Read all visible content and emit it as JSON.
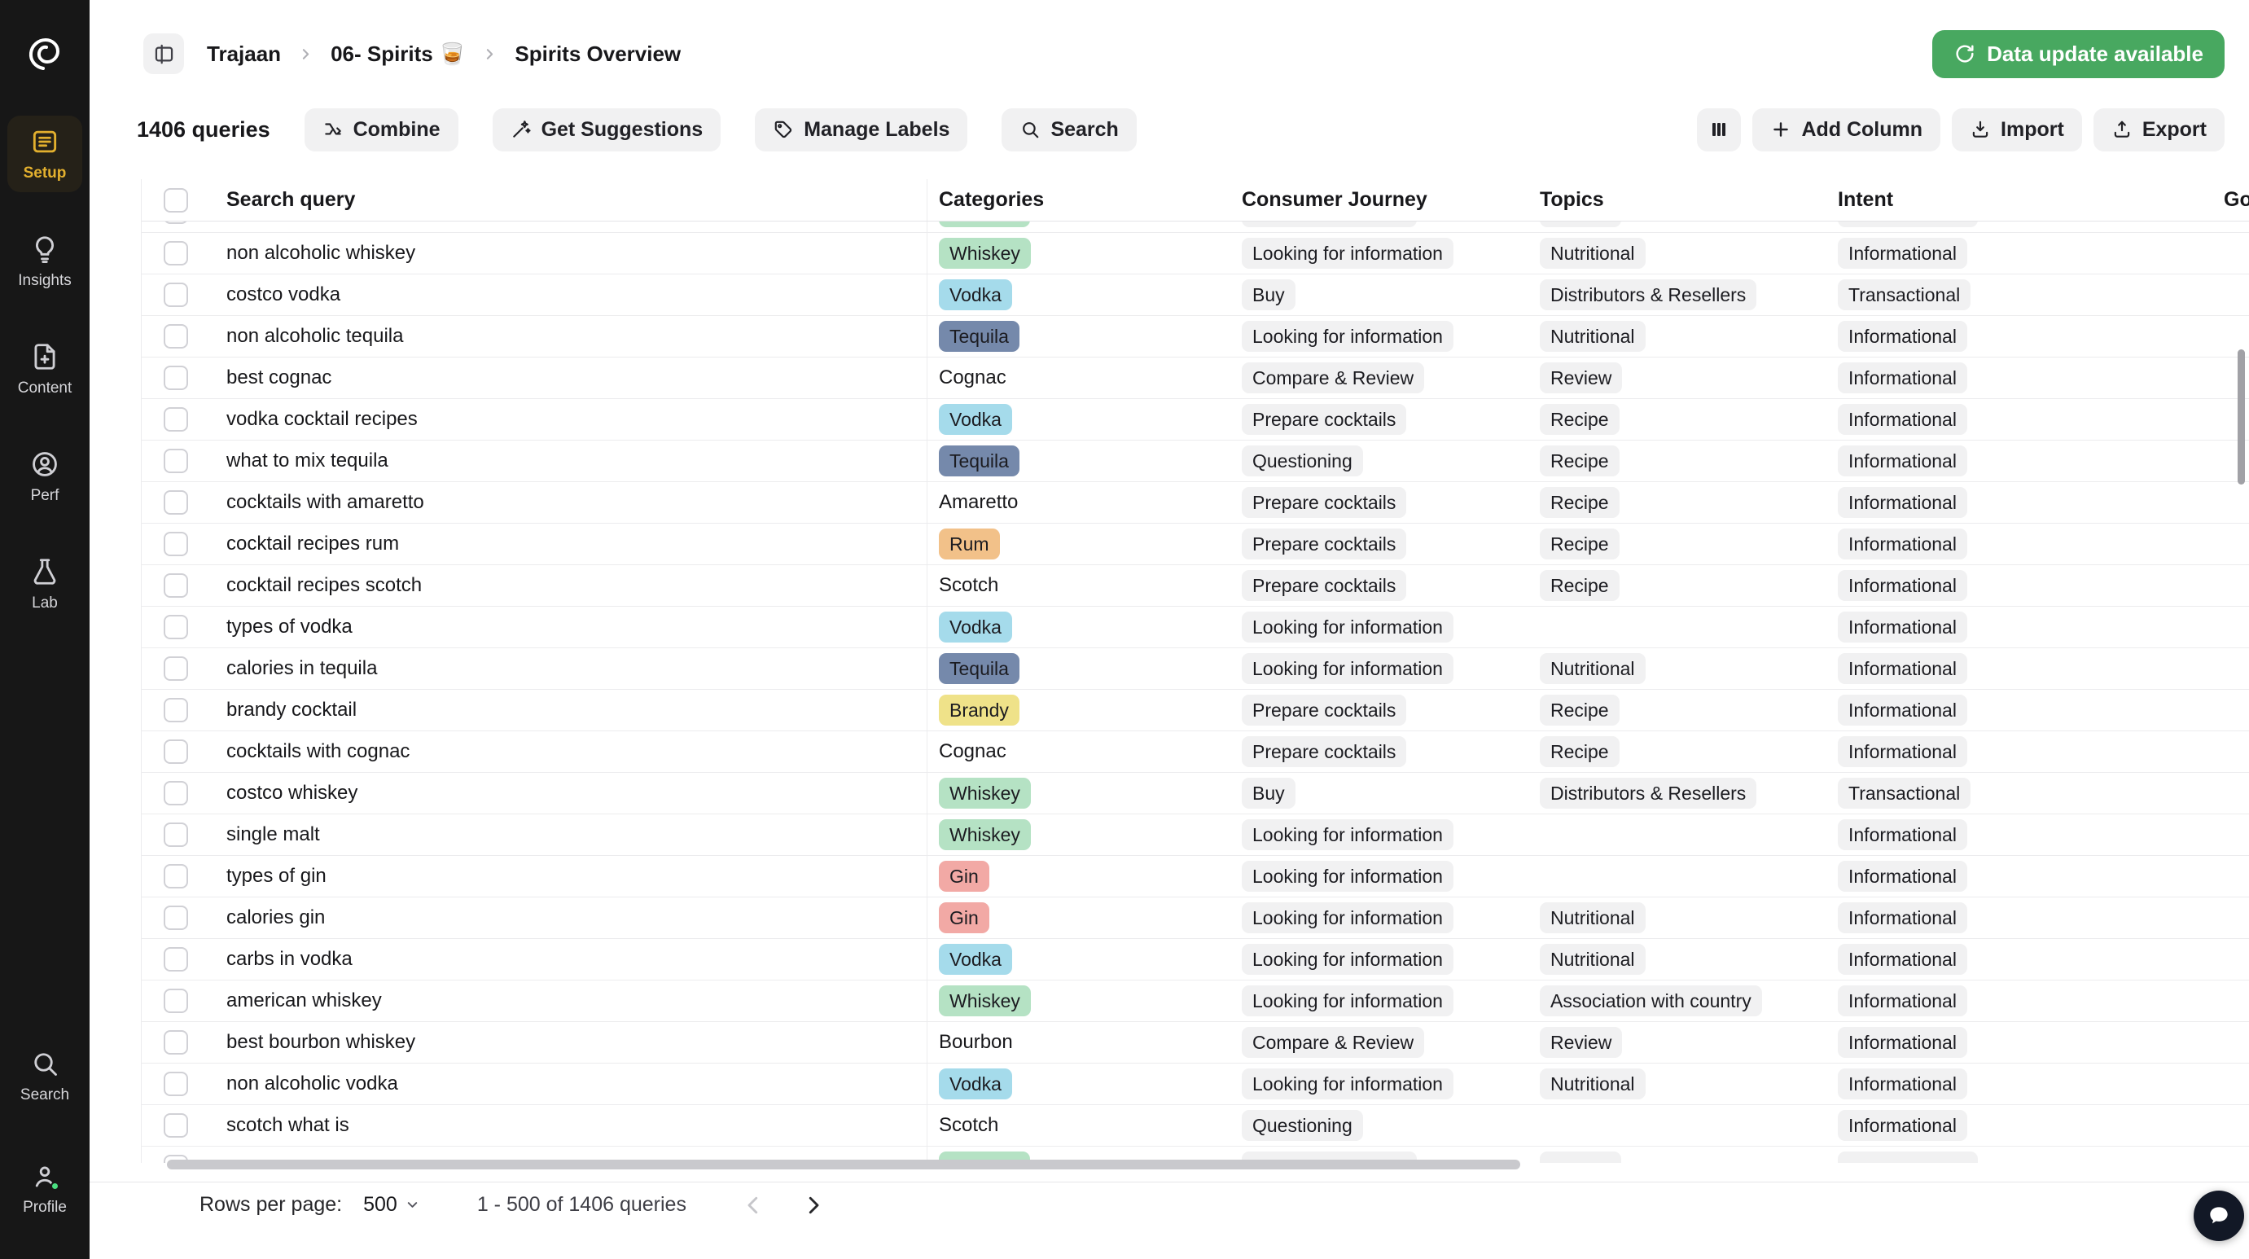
{
  "app": {
    "name": "Trajaan"
  },
  "colors": {
    "update_button_bg": "#48a860",
    "sidebar_bg": "#171717",
    "sidebar_active": "#e3b02e",
    "badge_gray_bg": "#f1f1f2"
  },
  "sidebar": {
    "items": [
      {
        "label": "Setup",
        "icon": "setup-list-icon",
        "active": true
      },
      {
        "label": "Insights",
        "icon": "lightbulb-icon",
        "active": false
      },
      {
        "label": "Content",
        "icon": "file-plus-icon",
        "active": false
      },
      {
        "label": "Perf",
        "icon": "user-circle-icon",
        "active": false
      },
      {
        "label": "Lab",
        "icon": "flask-icon",
        "active": false
      }
    ],
    "bottom_items": [
      {
        "label": "Search",
        "icon": "search-icon"
      },
      {
        "label": "Profile",
        "icon": "user-icon"
      }
    ]
  },
  "header": {
    "breadcrumb": [
      "Trajaan",
      "06- Spirits 🥃",
      "Spirits Overview"
    ],
    "update_button_label": "Data update available"
  },
  "toolbar": {
    "query_count": "1406 queries",
    "buttons": {
      "combine": "Combine",
      "get_suggestions": "Get Suggestions",
      "manage_labels": "Manage Labels",
      "search": "Search",
      "add_column": "Add Column",
      "import": "Import",
      "export": "Export"
    }
  },
  "table": {
    "columns": [
      "Search query",
      "Categories",
      "Consumer Journey",
      "Topics",
      "Intent",
      "Go"
    ],
    "category_colors": {
      "Whiskey": "#b5e2c4",
      "Vodka": "#a5dbeb",
      "Tequila": "#7589ab",
      "Rum": "#f2c189",
      "Brandy": "#efe289",
      "Gin": "#f2a9a5"
    },
    "rows": [
      {
        "query": "non alcoholic whiskey",
        "category": "Whiskey",
        "journey": "Looking for information",
        "topic": "Nutritional",
        "intent": "Informational"
      },
      {
        "query": "costco vodka",
        "category": "Vodka",
        "journey": "Buy",
        "topic": "Distributors & Resellers",
        "intent": "Transactional"
      },
      {
        "query": "non alcoholic tequila",
        "category": "Tequila",
        "journey": "Looking for information",
        "topic": "Nutritional",
        "intent": "Informational"
      },
      {
        "query": "best cognac",
        "category": "Cognac",
        "journey": "Compare & Review",
        "topic": "Review",
        "intent": "Informational"
      },
      {
        "query": "vodka cocktail recipes",
        "category": "Vodka",
        "journey": "Prepare cocktails",
        "topic": "Recipe",
        "intent": "Informational"
      },
      {
        "query": "what to mix tequila",
        "category": "Tequila",
        "journey": "Questioning",
        "topic": "Recipe",
        "intent": "Informational"
      },
      {
        "query": "cocktails with amaretto",
        "category": "Amaretto",
        "journey": "Prepare cocktails",
        "topic": "Recipe",
        "intent": "Informational"
      },
      {
        "query": "cocktail recipes rum",
        "category": "Rum",
        "journey": "Prepare cocktails",
        "topic": "Recipe",
        "intent": "Informational"
      },
      {
        "query": "cocktail recipes scotch",
        "category": "Scotch",
        "journey": "Prepare cocktails",
        "topic": "Recipe",
        "intent": "Informational"
      },
      {
        "query": "types of vodka",
        "category": "Vodka",
        "journey": "Looking for information",
        "topic": "",
        "intent": "Informational"
      },
      {
        "query": "calories in tequila",
        "category": "Tequila",
        "journey": "Looking for information",
        "topic": "Nutritional",
        "intent": "Informational"
      },
      {
        "query": "brandy cocktail",
        "category": "Brandy",
        "journey": "Prepare cocktails",
        "topic": "Recipe",
        "intent": "Informational"
      },
      {
        "query": "cocktails with cognac",
        "category": "Cognac",
        "journey": "Prepare cocktails",
        "topic": "Recipe",
        "intent": "Informational"
      },
      {
        "query": "costco whiskey",
        "category": "Whiskey",
        "journey": "Buy",
        "topic": "Distributors & Resellers",
        "intent": "Transactional"
      },
      {
        "query": "single malt",
        "category": "Whiskey",
        "journey": "Looking for information",
        "topic": "",
        "intent": "Informational"
      },
      {
        "query": "types of gin",
        "category": "Gin",
        "journey": "Looking for information",
        "topic": "",
        "intent": "Informational"
      },
      {
        "query": "calories gin",
        "category": "Gin",
        "journey": "Looking for information",
        "topic": "Nutritional",
        "intent": "Informational"
      },
      {
        "query": "carbs in vodka",
        "category": "Vodka",
        "journey": "Looking for information",
        "topic": "Nutritional",
        "intent": "Informational"
      },
      {
        "query": "american whiskey",
        "category": "Whiskey",
        "journey": "Looking for information",
        "topic": "Association with country",
        "intent": "Informational"
      },
      {
        "query": "best bourbon whiskey",
        "category": "Bourbon",
        "journey": "Compare & Review",
        "topic": "Review",
        "intent": "Informational"
      },
      {
        "query": "non alcoholic vodka",
        "category": "Vodka",
        "journey": "Looking for information",
        "topic": "Nutritional",
        "intent": "Informational"
      },
      {
        "query": "scotch what is",
        "category": "Scotch",
        "journey": "Questioning",
        "topic": "",
        "intent": "Informational"
      }
    ],
    "partial_rows": {
      "top": {
        "category_color": "#b5e2c4"
      },
      "bottom": {
        "category_color": "#b5e2c4"
      }
    }
  },
  "pagination": {
    "rows_per_page_label": "Rows per page:",
    "rows_per_page_value": "500",
    "range_text": "1 - 500 of 1406 queries"
  }
}
